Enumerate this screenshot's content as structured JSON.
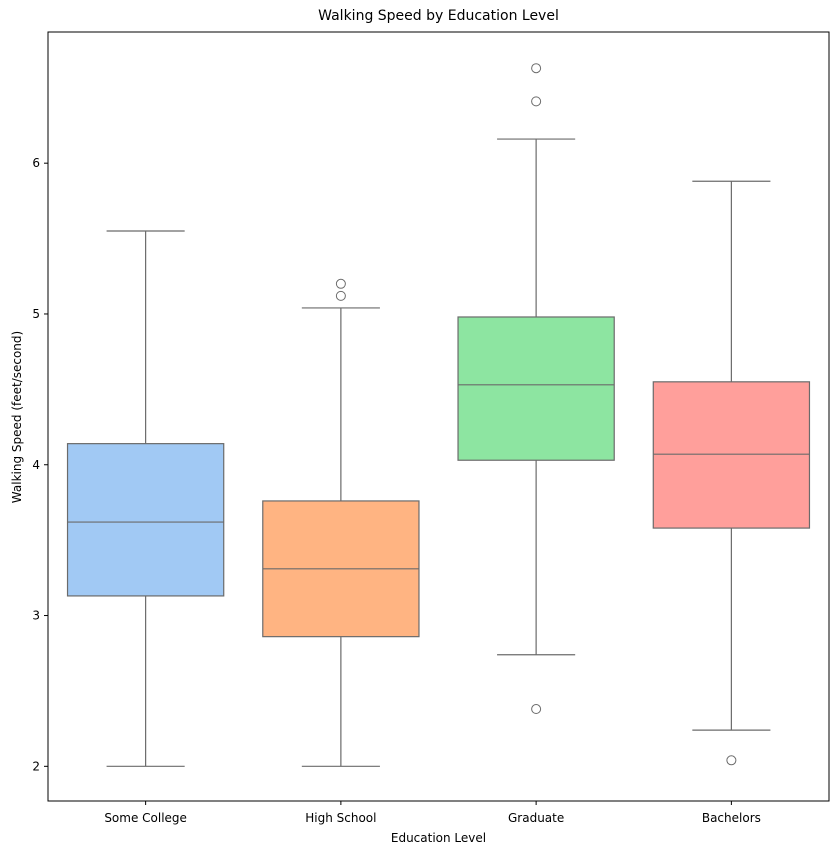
{
  "chart_data": {
    "type": "box",
    "title": "Walking Speed by Education Level",
    "xlabel": "Education Level",
    "ylabel": "Walking Speed (feet/second)",
    "ylim": [
      1.77,
      6.87
    ],
    "yticks": [
      2,
      3,
      4,
      5,
      6
    ],
    "grid": false,
    "categories": [
      "Some College",
      "High School",
      "Graduate",
      "Bachelors"
    ],
    "boxes": [
      {
        "category": "Some College",
        "whisker_low": 2.0,
        "q1": 3.13,
        "median": 3.62,
        "q3": 4.14,
        "whisker_high": 5.55,
        "outliers": [],
        "color": "#a1c9f4"
      },
      {
        "category": "High School",
        "whisker_low": 2.0,
        "q1": 2.86,
        "median": 3.31,
        "q3": 3.76,
        "whisker_high": 5.04,
        "outliers": [
          5.12,
          5.2
        ],
        "color": "#ffb482"
      },
      {
        "category": "Graduate",
        "whisker_low": 2.74,
        "q1": 4.03,
        "median": 4.53,
        "q3": 4.98,
        "whisker_high": 6.16,
        "outliers": [
          2.38,
          6.41,
          6.63
        ],
        "color": "#8de5a1"
      },
      {
        "category": "Bachelors",
        "whisker_low": 2.24,
        "q1": 3.58,
        "median": 4.07,
        "q3": 4.55,
        "whisker_high": 5.88,
        "outliers": [
          2.04
        ],
        "color": "#ff9f9b"
      }
    ],
    "line_color": "#6b6b6b"
  }
}
